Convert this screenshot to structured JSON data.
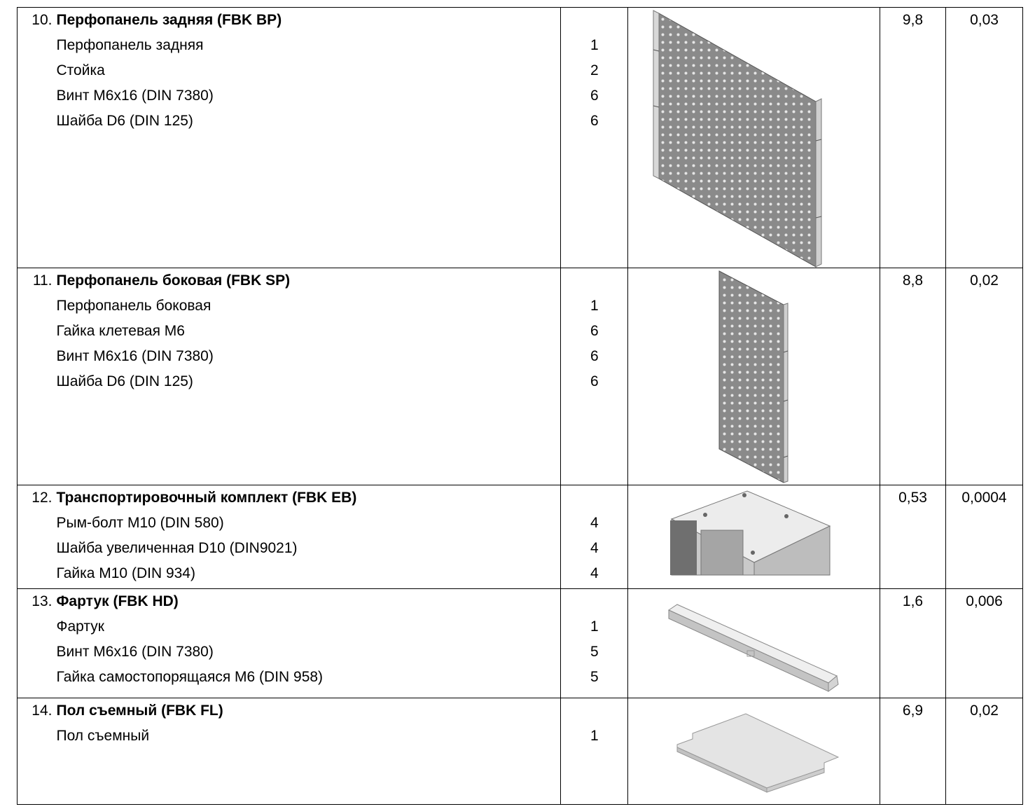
{
  "rows": [
    {
      "num": "10.",
      "title": "Перфопанель задняя (FBK BP)",
      "items": [
        "Перфопанель задняя",
        "Стойка",
        "Винт М6х16 (DIN 7380)",
        "Шайба D6 (DIN 125)"
      ],
      "qty": [
        "1",
        "2",
        "6",
        "6"
      ],
      "weight": "9,8",
      "volume": "0,03",
      "image_icon": "rear-perforated-panel-icon"
    },
    {
      "num": "11.",
      "title": "Перфопанель боковая (FBK SP)",
      "items": [
        "Перфопанель боковая",
        "Гайка клетевая М6",
        "Винт М6х16 (DIN 7380)",
        "Шайба D6 (DIN 125)"
      ],
      "qty": [
        "1",
        "6",
        "6",
        "6"
      ],
      "weight": "8,8",
      "volume": "0,02",
      "image_icon": "side-perforated-panel-icon"
    },
    {
      "num": "12.",
      "title": "Транспортировочный комплект (FBK EB)",
      "items": [
        "Рым-болт М10 (DIN 580)",
        "Шайба увеличенная D10 (DIN9021)",
        "Гайка М10 (DIN 934)"
      ],
      "qty": [
        "4",
        "4",
        "4"
      ],
      "weight": "0,53",
      "volume": "0,0004",
      "image_icon": "cabinet-eyebolt-icon"
    },
    {
      "num": "13.",
      "title": "Фартук (FBK HD)",
      "items": [
        "Фартук",
        "Винт М6х16 (DIN 7380)",
        "Гайка самостопорящаяся М6 (DIN 958)"
      ],
      "qty": [
        "1",
        "5",
        "5"
      ],
      "weight": "1,6",
      "volume": "0,006",
      "image_icon": "apron-icon"
    },
    {
      "num": "14.",
      "title": "Пол съемный (FBK FL)",
      "items": [
        "Пол съемный"
      ],
      "qty": [
        "1"
      ],
      "weight": "6,9",
      "volume": "0,02",
      "image_icon": "removable-floor-icon"
    }
  ]
}
